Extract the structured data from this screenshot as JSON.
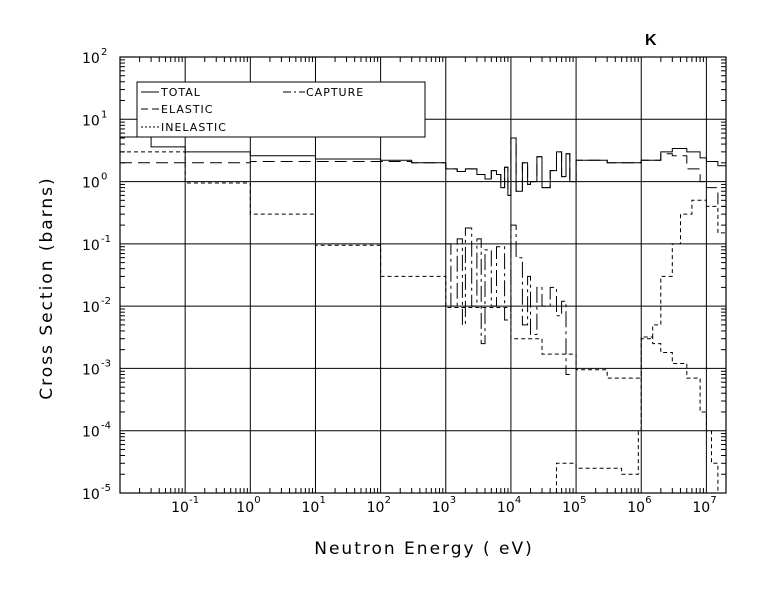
{
  "chart_data": {
    "type": "line",
    "title": "K",
    "xlabel": "Neutron Energy ( eV)",
    "ylabel": "Cross Section (barns)",
    "x_scale": "log",
    "y_scale": "log",
    "xlim": [
      0.01,
      20000000
    ],
    "ylim": [
      1e-05,
      100
    ],
    "grid": true,
    "legend_position": "top-left",
    "x_ticks": [
      {
        "base": "10",
        "exp": "-1",
        "value": 0.1
      },
      {
        "base": "10",
        "exp": "0",
        "value": 1
      },
      {
        "base": "10",
        "exp": "1",
        "value": 10
      },
      {
        "base": "10",
        "exp": "2",
        "value": 100
      },
      {
        "base": "10",
        "exp": "3",
        "value": 1000
      },
      {
        "base": "10",
        "exp": "4",
        "value": 10000
      },
      {
        "base": "10",
        "exp": "5",
        "value": 100000
      },
      {
        "base": "10",
        "exp": "6",
        "value": 1000000
      },
      {
        "base": "10",
        "exp": "7",
        "value": 10000000
      }
    ],
    "y_ticks": [
      {
        "base": "10",
        "exp": "-5",
        "value": 1e-05
      },
      {
        "base": "10",
        "exp": "-4",
        "value": 0.0001
      },
      {
        "base": "10",
        "exp": "-3",
        "value": 0.001
      },
      {
        "base": "10",
        "exp": "-2",
        "value": 0.01
      },
      {
        "base": "10",
        "exp": "-1",
        "value": 0.1
      },
      {
        "base": "10",
        "exp": "0",
        "value": 1
      },
      {
        "base": "10",
        "exp": "1",
        "value": 10
      },
      {
        "base": "10",
        "exp": "2",
        "value": 100
      }
    ],
    "series": [
      {
        "name": "TOTAL",
        "dash": "none",
        "points": [
          [
            0.01,
            5.2
          ],
          [
            0.03,
            3.6
          ],
          [
            0.1,
            3.0
          ],
          [
            1,
            2.6
          ],
          [
            10,
            2.3
          ],
          [
            100,
            2.2
          ],
          [
            300,
            2.0
          ],
          [
            1000,
            1.6
          ],
          [
            1500,
            1.45
          ],
          [
            2000,
            1.6
          ],
          [
            3000,
            1.3
          ],
          [
            4000,
            1.1
          ],
          [
            5000,
            1.5
          ],
          [
            6000,
            1.3
          ],
          [
            7000,
            0.8
          ],
          [
            8000,
            1.7
          ],
          [
            9000,
            0.6
          ],
          [
            10000,
            5.0
          ],
          [
            12000,
            0.7
          ],
          [
            15000,
            2.0
          ],
          [
            18000,
            0.9
          ],
          [
            20000,
            1.0
          ],
          [
            25000,
            2.5
          ],
          [
            30000,
            0.8
          ],
          [
            40000,
            1.5
          ],
          [
            50000,
            3.0
          ],
          [
            60000,
            1.2
          ],
          [
            70000,
            2.8
          ],
          [
            80000,
            1.0
          ],
          [
            100000,
            2.2
          ],
          [
            300000,
            2.0
          ],
          [
            1000000,
            2.2
          ],
          [
            2000000,
            3.0
          ],
          [
            3000000,
            3.4
          ],
          [
            5000000,
            3.0
          ],
          [
            8000000,
            2.4
          ],
          [
            10000000,
            2.1
          ],
          [
            15000000,
            1.8
          ],
          [
            20000000,
            1.8
          ]
        ]
      },
      {
        "name": "ELASTIC",
        "dash": "12,6",
        "points": [
          [
            0.01,
            2.0
          ],
          [
            0.1,
            2.0
          ],
          [
            1,
            2.1
          ],
          [
            10,
            2.1
          ],
          [
            100,
            2.1
          ],
          [
            300,
            2.0
          ],
          [
            1000,
            1.6
          ],
          [
            1500,
            1.45
          ],
          [
            2000,
            1.6
          ],
          [
            3000,
            1.3
          ],
          [
            4000,
            1.1
          ],
          [
            5000,
            1.5
          ],
          [
            6000,
            1.3
          ],
          [
            7000,
            0.8
          ],
          [
            8000,
            1.7
          ],
          [
            9000,
            0.6
          ],
          [
            10000,
            5.0
          ],
          [
            12000,
            0.7
          ],
          [
            15000,
            2.0
          ],
          [
            18000,
            0.9
          ],
          [
            20000,
            1.0
          ],
          [
            25000,
            2.5
          ],
          [
            30000,
            0.8
          ],
          [
            40000,
            1.5
          ],
          [
            50000,
            3.0
          ],
          [
            60000,
            1.2
          ],
          [
            70000,
            2.8
          ],
          [
            80000,
            1.0
          ],
          [
            100000,
            2.2
          ],
          [
            300000,
            2.0
          ],
          [
            1000000,
            2.2
          ],
          [
            2000000,
            2.8
          ],
          [
            3000000,
            2.6
          ],
          [
            5000000,
            1.6
          ],
          [
            8000000,
            1.0
          ],
          [
            10000000,
            0.8
          ],
          [
            15000000,
            0.4
          ],
          [
            20000000,
            0.25
          ]
        ]
      },
      {
        "name": "CAPTURE",
        "dash": "16,4,3,4",
        "points": [
          [
            1000,
            0.1
          ],
          [
            1200,
            0.01
          ],
          [
            1500,
            0.12
          ],
          [
            1800,
            0.005
          ],
          [
            2000,
            0.18
          ],
          [
            2500,
            0.01
          ],
          [
            3000,
            0.12
          ],
          [
            3500,
            0.0025
          ],
          [
            4000,
            0.08
          ],
          [
            5000,
            0.01
          ],
          [
            6000,
            0.09
          ],
          [
            8000,
            0.006
          ],
          [
            10000,
            0.2
          ],
          [
            12000,
            0.06
          ],
          [
            15000,
            0.005
          ],
          [
            18000,
            0.03
          ],
          [
            20000,
            0.0035
          ],
          [
            25000,
            0.02
          ],
          [
            30000,
            0.01
          ],
          [
            40000,
            0.02
          ],
          [
            50000,
            0.007
          ],
          [
            60000,
            0.012
          ],
          [
            70000,
            0.0008
          ],
          [
            80000,
            0.0008
          ]
        ]
      },
      {
        "name": "INELASTIC",
        "dash": "4,3",
        "points": [
          [
            0.01,
            3.0
          ],
          [
            0.1,
            0.95
          ],
          [
            1,
            0.3
          ],
          [
            10,
            0.095
          ],
          [
            100,
            0.03
          ],
          [
            1000,
            0.0095
          ],
          [
            10000,
            0.003
          ],
          [
            30000,
            0.0017
          ],
          [
            100000,
            0.00095
          ],
          [
            300000,
            0.0007
          ],
          [
            1000000,
            0.0032
          ],
          [
            1500000,
            0.0025
          ],
          [
            2000000,
            0.0018
          ],
          [
            3000000,
            0.0012
          ],
          [
            5000000,
            0.0007
          ],
          [
            8000000,
            0.0002
          ],
          [
            10000000,
            0.0001
          ],
          [
            12000000,
            3e-05
          ],
          [
            15000000,
            1e-05
          ],
          [
            40000,
            1e-05
          ],
          [
            50000,
            3e-05
          ],
          [
            100000,
            2.5e-05
          ],
          [
            500000,
            2e-05
          ],
          [
            900000,
            0.0001
          ],
          [
            1000000,
            0.003
          ],
          [
            1500000,
            0.005
          ],
          [
            2000000,
            0.03
          ],
          [
            3000000,
            0.1
          ],
          [
            4000000,
            0.3
          ],
          [
            6000000,
            0.5
          ],
          [
            10000000,
            0.4
          ],
          [
            15000000,
            0.15
          ],
          [
            20000000,
            0.2
          ]
        ]
      }
    ]
  }
}
